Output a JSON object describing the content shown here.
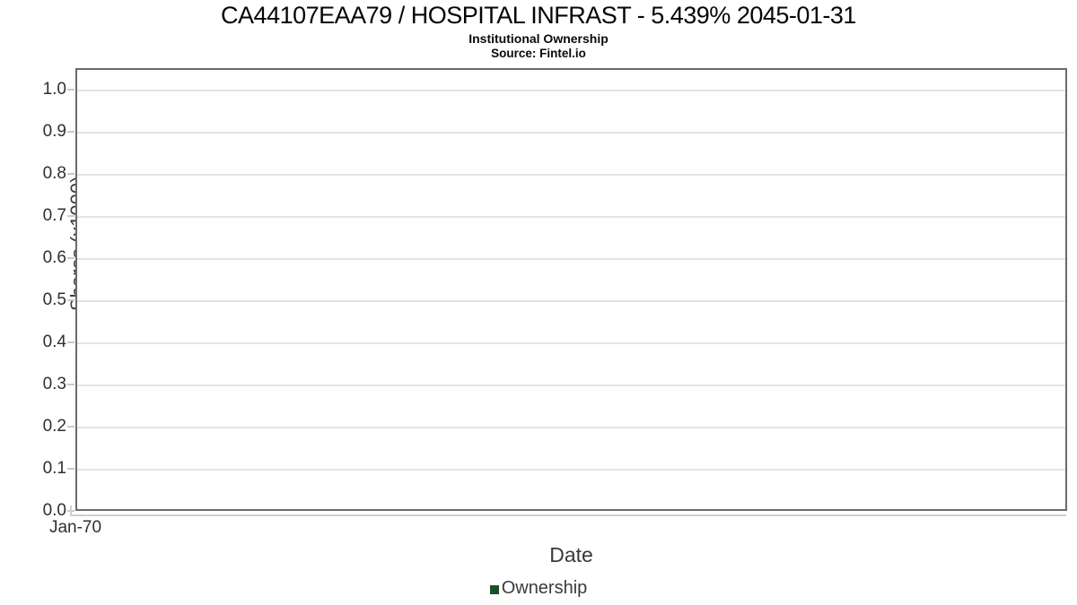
{
  "chart_data": {
    "type": "line",
    "title": "CA44107EAA79 / HOSPITAL INFRAST - 5.439% 2045-01-31",
    "subtitle": "Institutional Ownership",
    "source": "Source: Fintel.io",
    "xlabel": "Date",
    "ylabel": "Shares (x1000)",
    "x_tick_labels": [
      "Jan-70"
    ],
    "y_tick_labels": [
      "1.0",
      "0.9",
      "0.8",
      "0.7",
      "0.6",
      "0.5",
      "0.4",
      "0.3",
      "0.2",
      "0.1",
      "0.0"
    ],
    "ylim": [
      0.0,
      1.0
    ],
    "grid": true,
    "legend_position": "bottom",
    "series": [
      {
        "name": "Ownership",
        "color": "#1e4d2b",
        "x": [],
        "values": []
      }
    ]
  },
  "colors": {
    "plot_border": "#6b6b6b",
    "gridline": "#e4e4e4",
    "legend_green": "#1e4d2b"
  }
}
